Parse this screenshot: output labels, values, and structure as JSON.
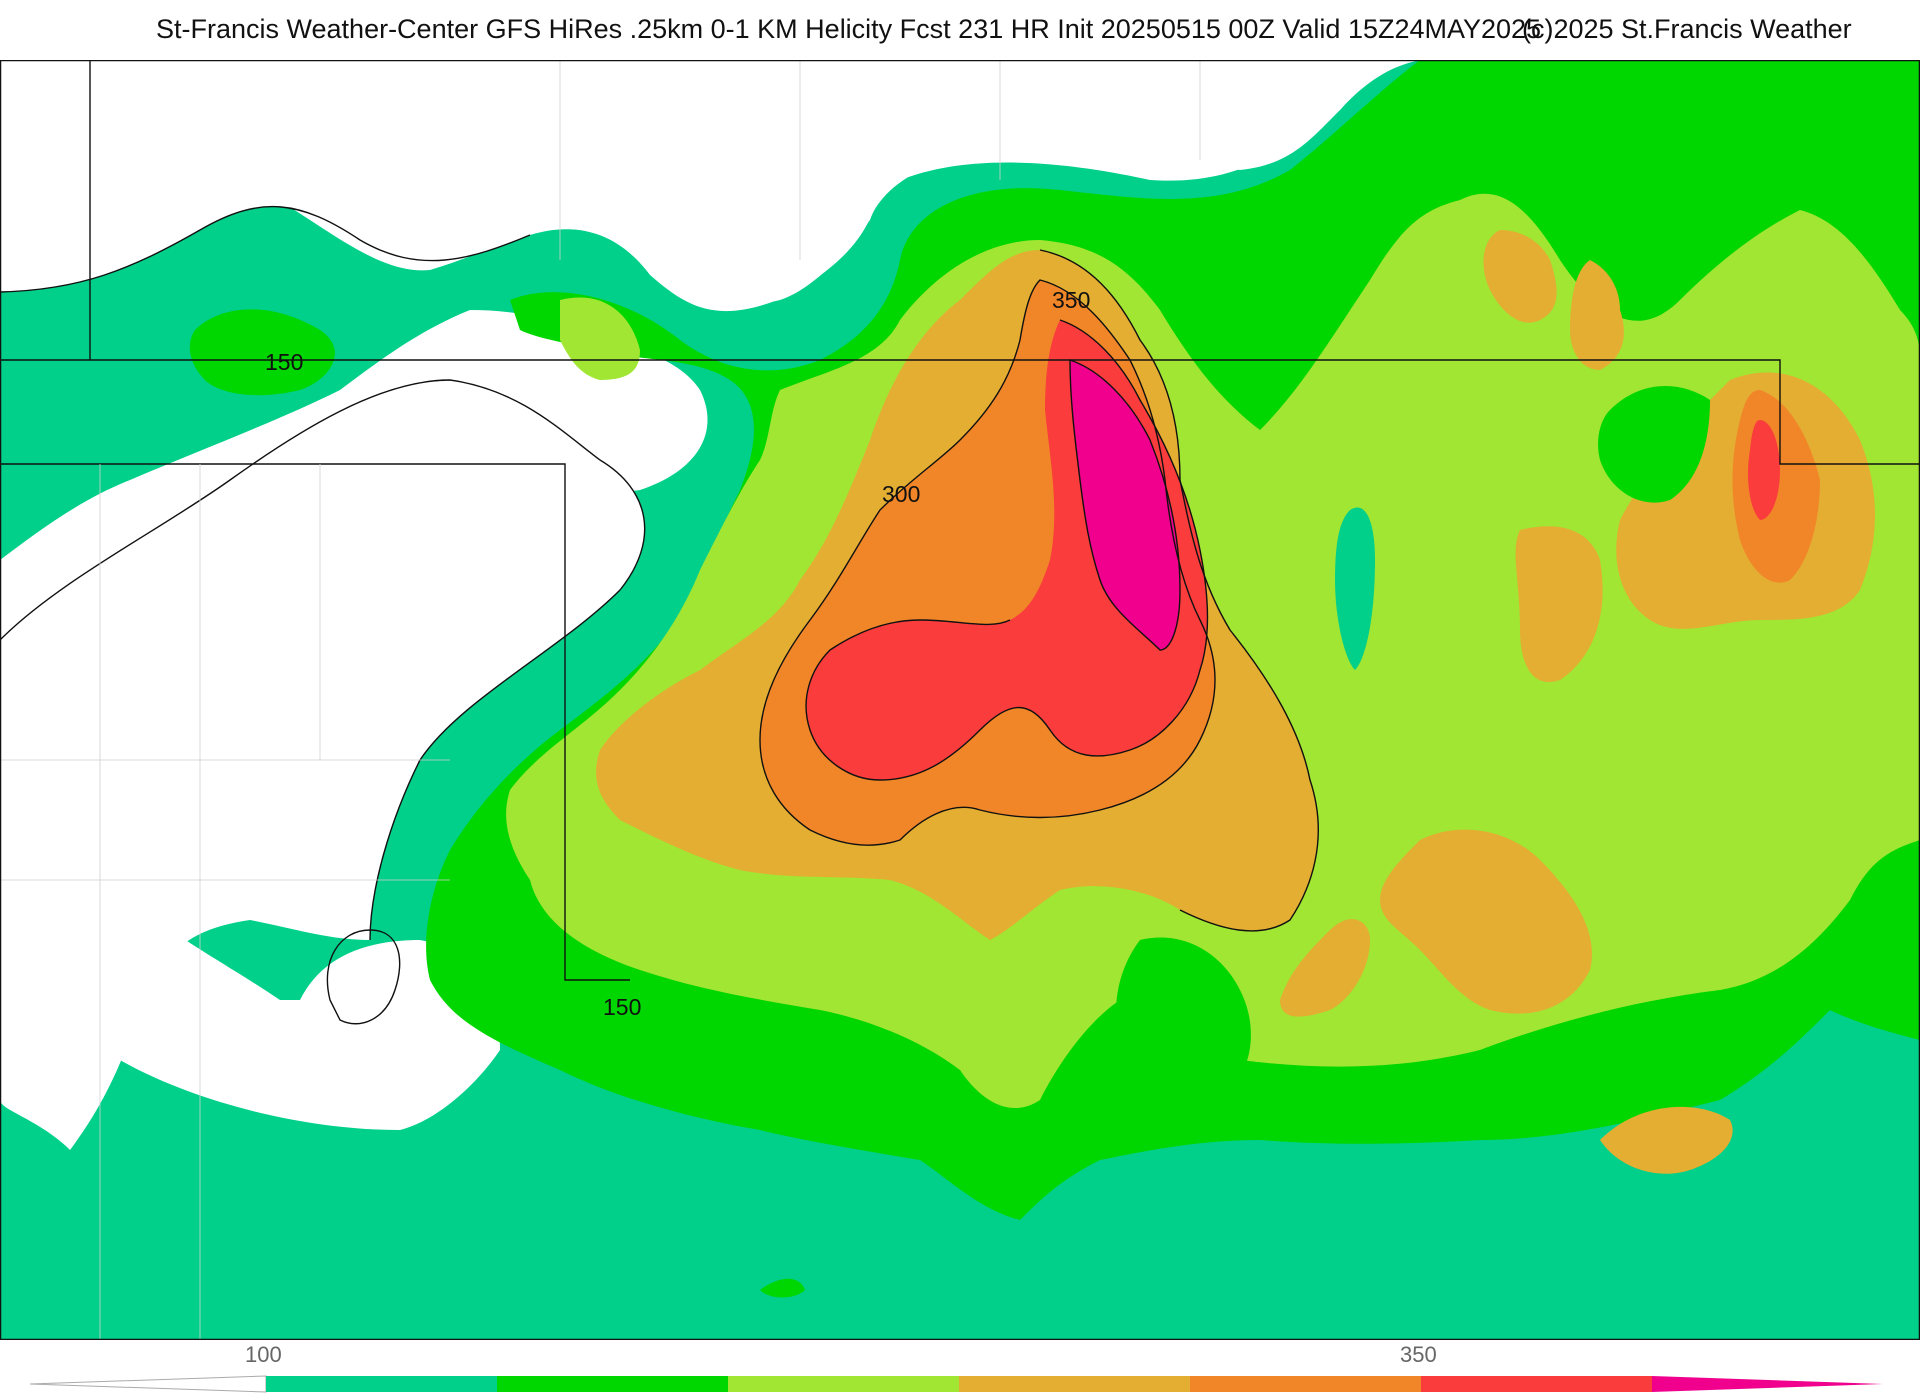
{
  "header": {
    "title": "St-Francis Weather-Center GFS HiRes .25km 0-1 KM Helicity Fcst 231 HR Init 20250515 00Z  Valid 15Z24MAY2025",
    "copyright": "(c)2025 St.Francis Weather"
  },
  "map": {
    "contour_labels": [
      "150",
      "150",
      "300",
      "350"
    ]
  },
  "legend": {
    "label_low": "100",
    "label_high": "350",
    "colors": [
      "#00d08a",
      "#00d600",
      "#a0e632",
      "#e4ae32",
      "#f08628",
      "#fa3c3c",
      "#f0008c"
    ]
  }
}
